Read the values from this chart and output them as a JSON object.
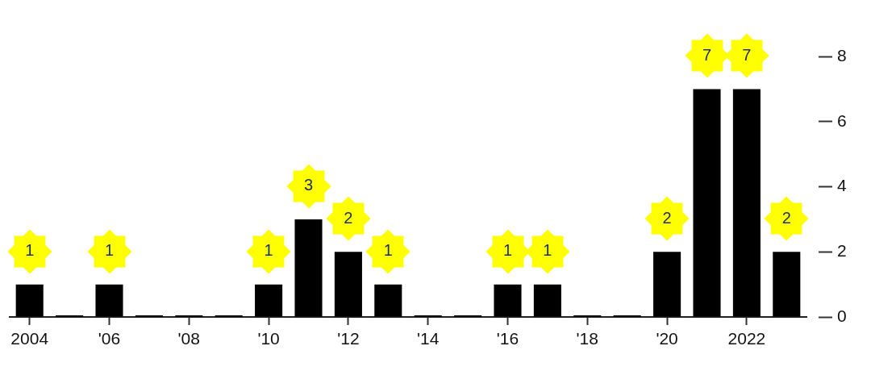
{
  "chart_data": {
    "type": "bar",
    "categories": [
      "2004",
      null,
      "'06",
      null,
      "'08",
      null,
      "'10",
      null,
      "'12",
      null,
      "'14",
      null,
      "'16",
      null,
      "'18",
      null,
      "'20",
      null,
      "2022",
      null
    ],
    "values": [
      1,
      0,
      1,
      0,
      0,
      0,
      1,
      3,
      2,
      1,
      0,
      0,
      1,
      1,
      0,
      0,
      2,
      7,
      7,
      2
    ],
    "value_labels": [
      "1",
      null,
      "1",
      null,
      null,
      null,
      "1",
      "3",
      "2",
      "1",
      null,
      null,
      "1",
      "1",
      null,
      null,
      "2",
      "7",
      "7",
      "2"
    ],
    "color": "#000000",
    "ylim": [
      0,
      8
    ],
    "yticks": [
      0,
      2,
      4,
      6,
      8
    ]
  }
}
